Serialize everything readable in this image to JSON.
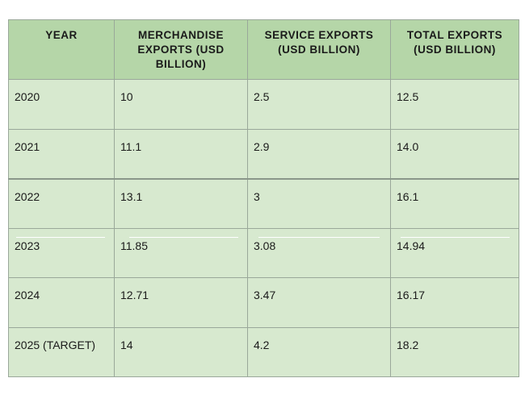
{
  "chart_data": {
    "type": "table",
    "columns": [
      "YEAR",
      "MERCHANDISE EXPORTS (USD BILLION)",
      "SERVICE EXPORTS (USD BILLION)",
      "TOTAL EXPORTS (USD BILLION)"
    ],
    "rows": [
      [
        "2020",
        "10",
        "2.5",
        "12.5"
      ],
      [
        "2021",
        "11.1",
        "2.9",
        "14.0"
      ],
      [
        "2022",
        "13.1",
        "3",
        "16.1"
      ],
      [
        "2023",
        "11.85",
        "3.08",
        "14.94"
      ],
      [
        "2024",
        "12.71",
        "3.47",
        "16.17"
      ],
      [
        "2025 (TARGET)",
        "14",
        "4.2",
        "18.2"
      ]
    ]
  }
}
